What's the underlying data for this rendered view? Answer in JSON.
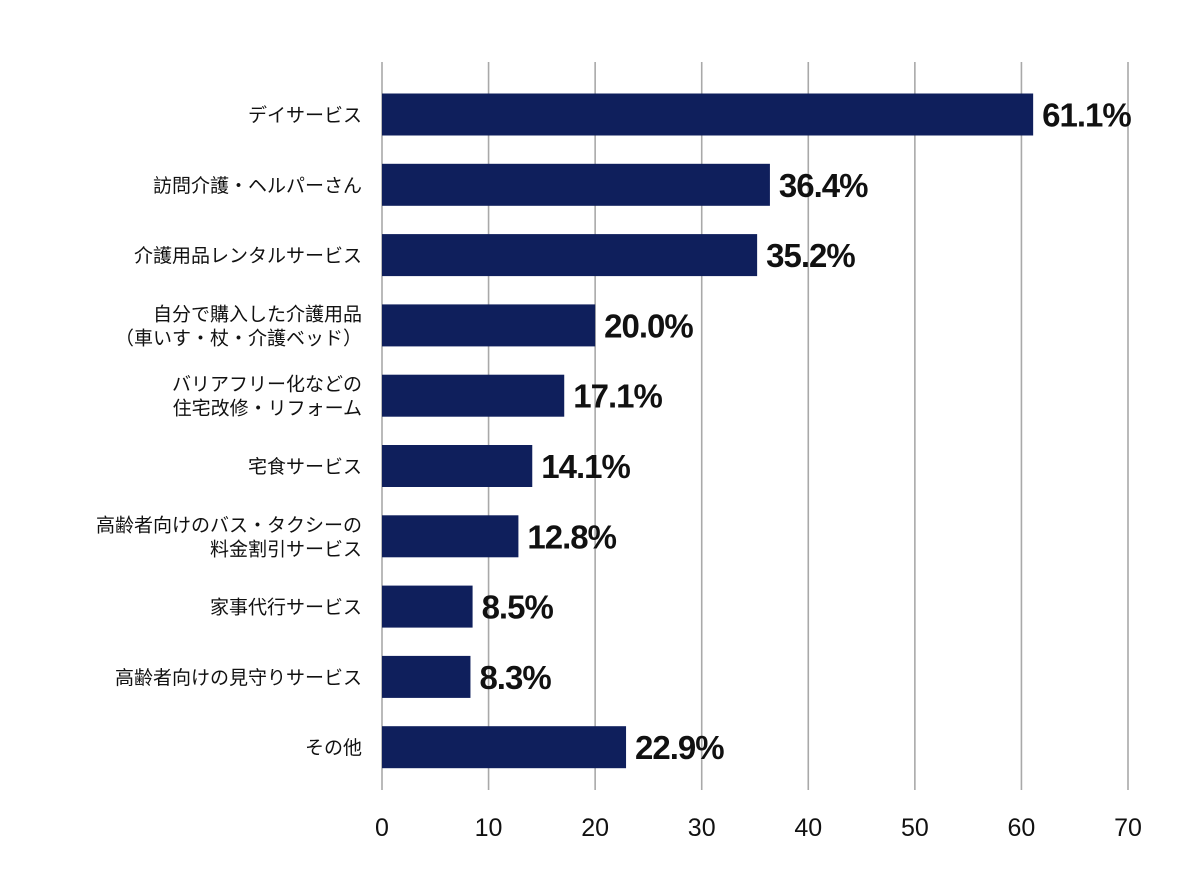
{
  "chart_data": {
    "type": "bar",
    "orientation": "horizontal",
    "categories": [
      [
        "デイサービス"
      ],
      [
        "訪問介護・ヘルパーさん"
      ],
      [
        "介護用品レンタルサービス"
      ],
      [
        "自分で購入した介護用品",
        "（車いす・杖・介護ベッド）"
      ],
      [
        "バリアフリー化などの",
        "住宅改修・リフォーム"
      ],
      [
        "宅食サービス"
      ],
      [
        "高齢者向けのバス・タクシーの",
        "料金割引サービス"
      ],
      [
        "家事代行サービス"
      ],
      [
        "高齢者向けの見守りサービス"
      ],
      [
        "その他"
      ]
    ],
    "values": [
      61.1,
      36.4,
      35.2,
      20.0,
      17.1,
      14.1,
      12.8,
      8.5,
      8.3,
      22.9
    ],
    "value_labels": [
      "61.1%",
      "36.4%",
      "35.2%",
      "20.0%",
      "17.1%",
      "14.1%",
      "12.8%",
      "8.5%",
      "8.3%",
      "22.9%"
    ],
    "xlim": [
      0,
      70
    ],
    "xticks": [
      0,
      10,
      20,
      30,
      40,
      50,
      60,
      70
    ],
    "title": "",
    "xlabel": "",
    "ylabel": "",
    "grid": true,
    "legend": "none",
    "bar_color": "#0f1f5c",
    "grid_color": "#a9a9a9"
  }
}
